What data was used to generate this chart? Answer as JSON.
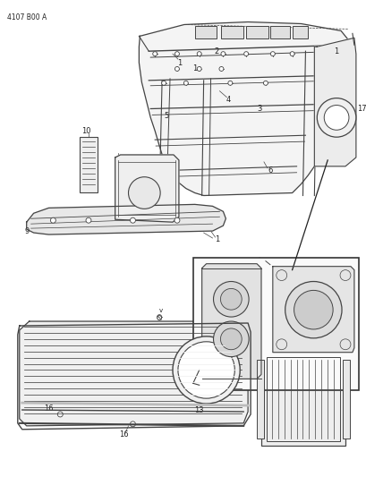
{
  "part_number": "4107 B00 A",
  "background_color": "#ffffff",
  "line_color": "#444444",
  "text_color": "#222222",
  "fig_width": 4.1,
  "fig_height": 5.33,
  "dpi": 100
}
